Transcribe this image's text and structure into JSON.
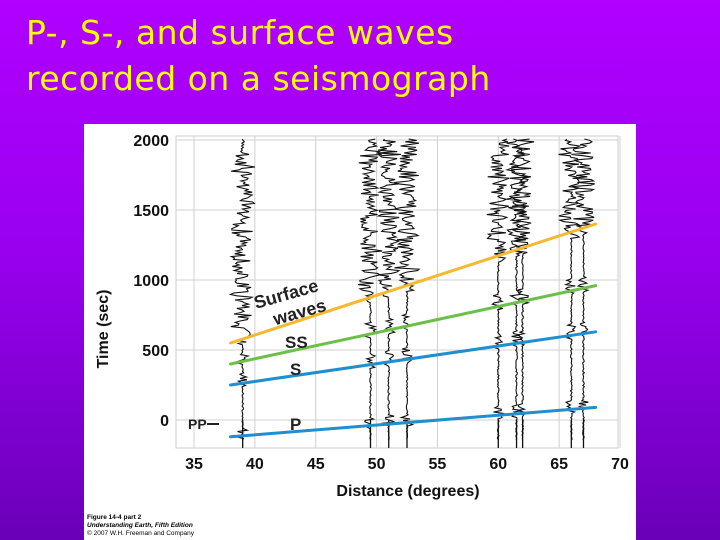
{
  "slide": {
    "title_line1": "P-, S-, and surface waves",
    "title_line2": "recorded on a seismograph",
    "colors": {
      "background": "#9a00f0",
      "title": "#ffff00"
    }
  },
  "figure": {
    "x_axis_label": "Distance (degrees)",
    "y_axis_label": "Time (sec)",
    "x_ticks": [
      "35",
      "40",
      "45",
      "50",
      "55",
      "60",
      "65",
      "70"
    ],
    "y_ticks": [
      "2000",
      "1500",
      "1000",
      "500",
      "0"
    ],
    "wave_labels": {
      "pp": "PP",
      "p": "P",
      "s": "S",
      "ss": "SS",
      "surface_line1": "Surface",
      "surface_line2": "waves"
    },
    "caption_line1": "Figure 14-4 part 2",
    "caption_line2": "Understanding Earth, Fifth Edition",
    "caption_line3": "© 2007 W.H. Freeman and Company",
    "colors": {
      "P": "#1f8fd0",
      "S": "#1f8fd0",
      "SS": "#6cc04a",
      "surface": "#f5b82e",
      "grid": "#d0d0d0",
      "trace": "#111111"
    }
  },
  "chart_data": {
    "type": "line",
    "xlabel": "Distance (degrees)",
    "ylabel": "Time (sec)",
    "xlim": [
      35,
      70
    ],
    "ylim": [
      0,
      2000
    ],
    "grid": true,
    "series": [
      {
        "name": "P",
        "x": [
          38,
          68
        ],
        "y": [
          -120,
          90
        ]
      },
      {
        "name": "S",
        "x": [
          38,
          68
        ],
        "y": [
          250,
          630
        ]
      },
      {
        "name": "SS",
        "x": [
          38,
          68
        ],
        "y": [
          400,
          960
        ]
      },
      {
        "name": "Surface waves",
        "x": [
          38,
          68
        ],
        "y": [
          550,
          1400
        ]
      }
    ],
    "seismogram_traces_at_degrees": [
      39,
      49.5,
      51,
      52.5,
      60,
      61.5,
      62,
      66,
      67
    ]
  }
}
